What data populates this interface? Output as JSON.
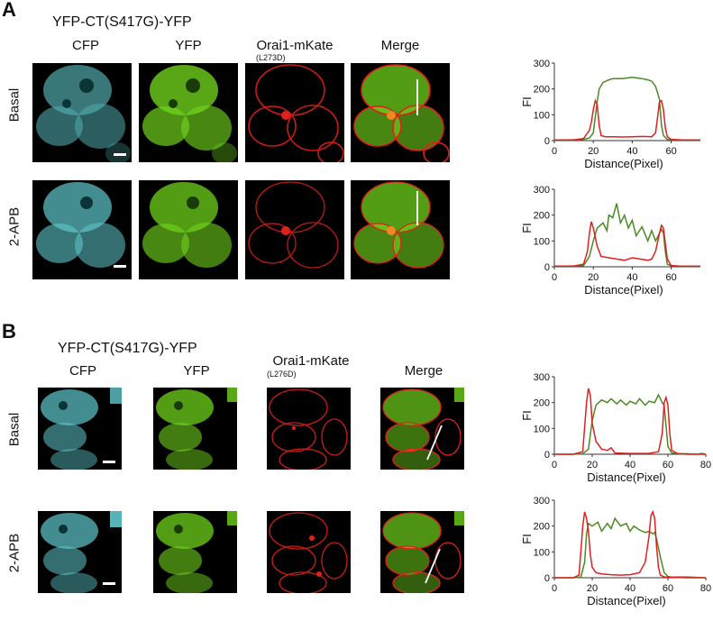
{
  "figure": {
    "panel_a": {
      "letter": "A",
      "construct": "YFP-CT(S417G)-YFP",
      "columns": [
        "CFP",
        "YFP",
        "Orai1-mKate",
        "Merge"
      ],
      "column_sublabel": "(L273D)",
      "rows": [
        "Basal",
        "2-APB"
      ]
    },
    "panel_b": {
      "letter": "B",
      "construct": "YFP-CT(S417G)-YFP",
      "columns": [
        "CFP",
        "YFP",
        "Orai1-mKate",
        "Merge"
      ],
      "column_sublabel": "(L276D)",
      "rows": [
        "Basal",
        "2-APB"
      ]
    },
    "colors": {
      "cfp": "#5fc8cc",
      "yfp": "#6fd11c",
      "red": "#e0201a",
      "trace_green": "#4a8a23",
      "trace_red": "#e02020"
    }
  },
  "chart_data": [
    {
      "type": "line",
      "xlabel": "Distance(Pixel)",
      "ylabel": "FI",
      "xlim": [
        0,
        75
      ],
      "ylim": [
        0,
        300
      ],
      "xticks": [
        0,
        20,
        40,
        60
      ],
      "yticks": [
        0,
        100,
        200,
        300
      ],
      "series": [
        {
          "color": "#4a8a23",
          "x": [
            0,
            10,
            15,
            18,
            20,
            22,
            23,
            25,
            28,
            30,
            35,
            40,
            45,
            48,
            50,
            52,
            54,
            55,
            56,
            58,
            60,
            65,
            70,
            75
          ],
          "y": [
            2,
            2,
            5,
            10,
            30,
            150,
            200,
            225,
            235,
            240,
            240,
            245,
            240,
            235,
            230,
            210,
            160,
            60,
            20,
            5,
            3,
            2,
            2,
            2
          ]
        },
        {
          "color": "#e02020",
          "x": [
            0,
            10,
            15,
            18,
            19,
            20,
            21,
            22,
            23,
            24,
            26,
            30,
            35,
            40,
            45,
            50,
            52,
            53,
            54,
            55,
            56,
            57,
            58,
            60,
            65,
            75
          ],
          "y": [
            2,
            3,
            8,
            40,
            70,
            120,
            155,
            140,
            60,
            20,
            15,
            15,
            14,
            15,
            16,
            15,
            30,
            90,
            150,
            155,
            120,
            50,
            15,
            5,
            3,
            2
          ]
        }
      ]
    },
    {
      "type": "line",
      "xlabel": "Distance(Pixel)",
      "ylabel": "FI",
      "xlim": [
        0,
        75
      ],
      "ylim": [
        0,
        300
      ],
      "xticks": [
        0,
        20,
        40,
        60
      ],
      "yticks": [
        0,
        100,
        200,
        300
      ],
      "series": [
        {
          "color": "#4a8a23",
          "x": [
            0,
            10,
            15,
            18,
            20,
            22,
            25,
            27,
            28,
            30,
            32,
            34,
            36,
            38,
            40,
            42,
            45,
            48,
            50,
            52,
            55,
            56,
            57,
            58,
            60,
            65,
            75
          ],
          "y": [
            2,
            2,
            5,
            40,
            100,
            150,
            170,
            140,
            200,
            190,
            245,
            170,
            200,
            150,
            180,
            120,
            155,
            100,
            140,
            100,
            145,
            130,
            60,
            10,
            4,
            2,
            2
          ]
        },
        {
          "color": "#e02020",
          "x": [
            0,
            10,
            15,
            17,
            18,
            19,
            20,
            22,
            24,
            28,
            32,
            36,
            40,
            44,
            48,
            50,
            52,
            54,
            55,
            56,
            57,
            58,
            60,
            65,
            75
          ],
          "y": [
            2,
            3,
            10,
            60,
            130,
            175,
            150,
            80,
            40,
            35,
            30,
            25,
            35,
            30,
            25,
            30,
            60,
            130,
            160,
            150,
            90,
            30,
            5,
            2,
            2
          ]
        }
      ]
    },
    {
      "type": "line",
      "xlabel": "Distance(Pixel)",
      "ylabel": "FI",
      "xlim": [
        0,
        80
      ],
      "ylim": [
        0,
        300
      ],
      "xticks": [
        0,
        20,
        40,
        60,
        80
      ],
      "yticks": [
        0,
        100,
        200,
        300
      ],
      "series": [
        {
          "color": "#4a8a23",
          "x": [
            0,
            10,
            15,
            18,
            20,
            22,
            25,
            28,
            30,
            33,
            35,
            38,
            40,
            43,
            45,
            48,
            50,
            53,
            55,
            57,
            58,
            59,
            60,
            62,
            65,
            70,
            75,
            78,
            80
          ],
          "y": [
            0,
            0,
            2,
            20,
            130,
            190,
            210,
            200,
            215,
            195,
            210,
            190,
            205,
            195,
            215,
            190,
            205,
            200,
            230,
            200,
            190,
            110,
            30,
            5,
            2,
            2,
            0,
            3,
            0
          ]
        },
        {
          "color": "#e02020",
          "x": [
            0,
            10,
            15,
            17,
            18,
            19,
            20,
            22,
            25,
            28,
            30,
            32,
            40,
            50,
            55,
            57,
            58,
            59,
            60,
            61,
            62,
            65,
            70,
            80
          ],
          "y": [
            0,
            0,
            10,
            200,
            255,
            230,
            120,
            50,
            20,
            15,
            25,
            5,
            3,
            3,
            10,
            80,
            200,
            220,
            190,
            80,
            15,
            3,
            0,
            0
          ]
        }
      ]
    },
    {
      "type": "line",
      "xlabel": "Distance(Pixel)",
      "ylabel": "FI",
      "xlim": [
        0,
        80
      ],
      "ylim": [
        0,
        300
      ],
      "xticks": [
        0,
        20,
        40,
        60,
        80
      ],
      "yticks": [
        0,
        100,
        200,
        300
      ],
      "series": [
        {
          "color": "#4a8a23",
          "x": [
            0,
            10,
            14,
            16,
            17,
            18,
            20,
            23,
            25,
            28,
            30,
            32,
            35,
            38,
            40,
            42,
            45,
            48,
            50,
            52,
            53,
            54,
            56,
            58,
            60,
            62,
            65,
            70,
            80
          ],
          "y": [
            0,
            0,
            2,
            60,
            170,
            210,
            200,
            215,
            180,
            210,
            190,
            230,
            200,
            210,
            180,
            200,
            185,
            175,
            180,
            170,
            175,
            150,
            80,
            20,
            5,
            2,
            3,
            3,
            0
          ]
        },
        {
          "color": "#e02020",
          "x": [
            0,
            10,
            13,
            14,
            15,
            16,
            17,
            18,
            19,
            20,
            22,
            25,
            30,
            35,
            40,
            45,
            48,
            50,
            51,
            52,
            53,
            54,
            55,
            56,
            58,
            60,
            70,
            80
          ],
          "y": [
            0,
            0,
            10,
            100,
            200,
            255,
            230,
            180,
            90,
            40,
            20,
            15,
            12,
            10,
            12,
            20,
            60,
            160,
            240,
            255,
            230,
            120,
            40,
            10,
            3,
            2,
            0,
            0
          ]
        }
      ]
    }
  ]
}
